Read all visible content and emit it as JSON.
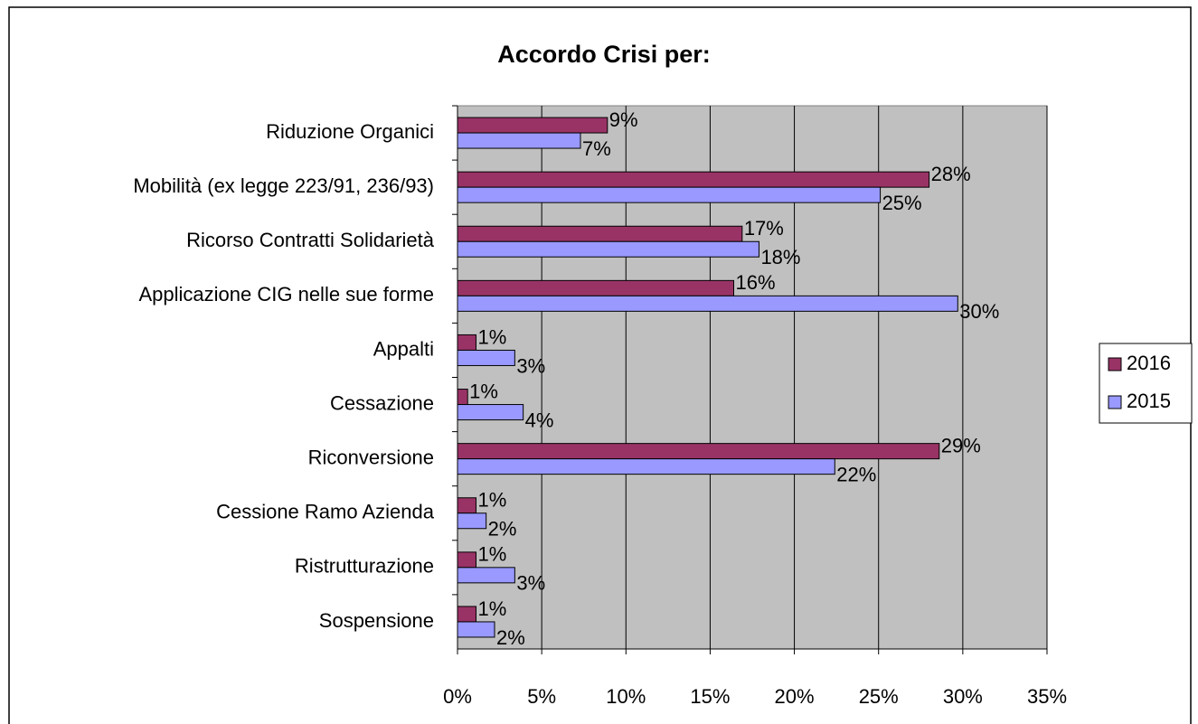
{
  "chart_data": {
    "type": "bar",
    "orientation": "horizontal",
    "title": "Accordo Crisi per:",
    "categories": [
      "Riduzione Organici",
      "Mobilità (ex legge  223/91, 236/93)",
      "Ricorso Contratti Solidarietà",
      "Applicazione CIG nelle sue forme",
      "Appalti",
      "Cessazione",
      "Riconversione",
      "Cessione Ramo Azienda",
      "Ristrutturazione",
      "Sospensione"
    ],
    "series": [
      {
        "name": "2016",
        "color": "#993366",
        "values": [
          8.9,
          28.0,
          16.9,
          16.4,
          1.1,
          0.6,
          28.6,
          1.1,
          1.1,
          1.1
        ],
        "value_labels": [
          "9%",
          "28%",
          "17%",
          "16%",
          "1%",
          "1%",
          "29%",
          "1%",
          "1%",
          "1%"
        ]
      },
      {
        "name": "2015",
        "color": "#9999ff",
        "values": [
          7.3,
          25.1,
          17.9,
          29.7,
          3.4,
          3.9,
          22.4,
          1.7,
          3.4,
          2.2
        ],
        "value_labels": [
          "7%",
          "25%",
          "18%",
          "30%",
          "3%",
          "4%",
          "22%",
          "2%",
          "3%",
          "2%"
        ]
      }
    ],
    "xlim": [
      0,
      35
    ],
    "xticks": [
      {
        "value": 0,
        "label": "0%"
      },
      {
        "value": 5,
        "label": "5%"
      },
      {
        "value": 10,
        "label": "10%"
      },
      {
        "value": 15,
        "label": "15%"
      },
      {
        "value": 20,
        "label": "20%"
      },
      {
        "value": 25,
        "label": "25%"
      },
      {
        "value": 30,
        "label": "30%"
      },
      {
        "value": 35,
        "label": "35%"
      }
    ],
    "grid": true,
    "legend": "right"
  }
}
